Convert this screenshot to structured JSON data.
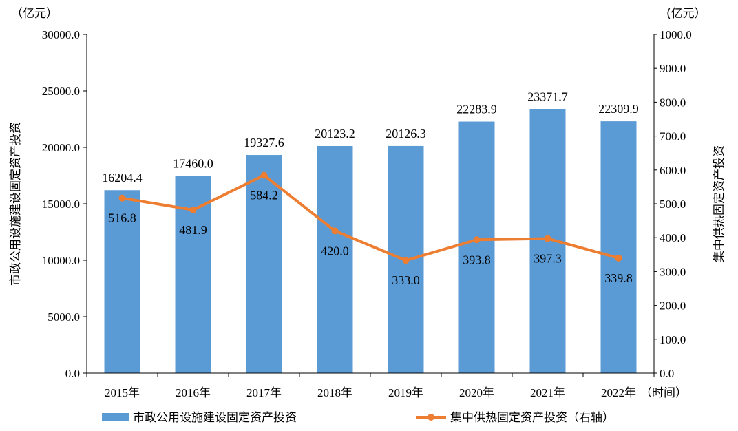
{
  "chart_data": {
    "type": "bar",
    "categories": [
      "2015年",
      "2016年",
      "2017年",
      "2018年",
      "2019年",
      "2020年",
      "2021年",
      "2022年"
    ],
    "x_suffix": "（时间）",
    "series": [
      {
        "name": "市政公用设施建设固定资产投资",
        "type": "bar",
        "axis": "left",
        "color": "#5b9bd5",
        "values": [
          16204.4,
          17460.0,
          19327.6,
          20123.2,
          20126.3,
          22283.9,
          23371.7,
          22309.9
        ],
        "labels": [
          "16204.4",
          "17460.0",
          "19327.6",
          "20123.2",
          "20126.3",
          "22283.9",
          "23371.7",
          "22309.9"
        ]
      },
      {
        "name": "集中供热固定资产投资（右轴）",
        "type": "line",
        "axis": "right",
        "color": "#ed7d31",
        "values": [
          516.8,
          481.9,
          584.2,
          420.0,
          333.0,
          393.8,
          397.3,
          339.8
        ],
        "labels": [
          "516.8",
          "481.9",
          "584.2",
          "420.0",
          "333.0",
          "393.8",
          "397.3",
          "339.8"
        ]
      }
    ],
    "y_left": {
      "label": "市政公用设施建设固定资产投资",
      "unit": "（亿元）",
      "min": 0,
      "max": 30000,
      "ticks": [
        "0.0",
        "5000.0",
        "10000.0",
        "15000.0",
        "20000.0",
        "25000.0",
        "30000.0"
      ]
    },
    "y_right": {
      "label": "集中供热固定资产投资",
      "unit": "(亿元）",
      "min": 0,
      "max": 1000,
      "ticks": [
        "0.0",
        "100.0",
        "200.0",
        "300.0",
        "400.0",
        "500.0",
        "600.0",
        "700.0",
        "800.0",
        "900.0",
        "1000.0"
      ]
    },
    "grid": false,
    "legend_position": "bottom"
  }
}
